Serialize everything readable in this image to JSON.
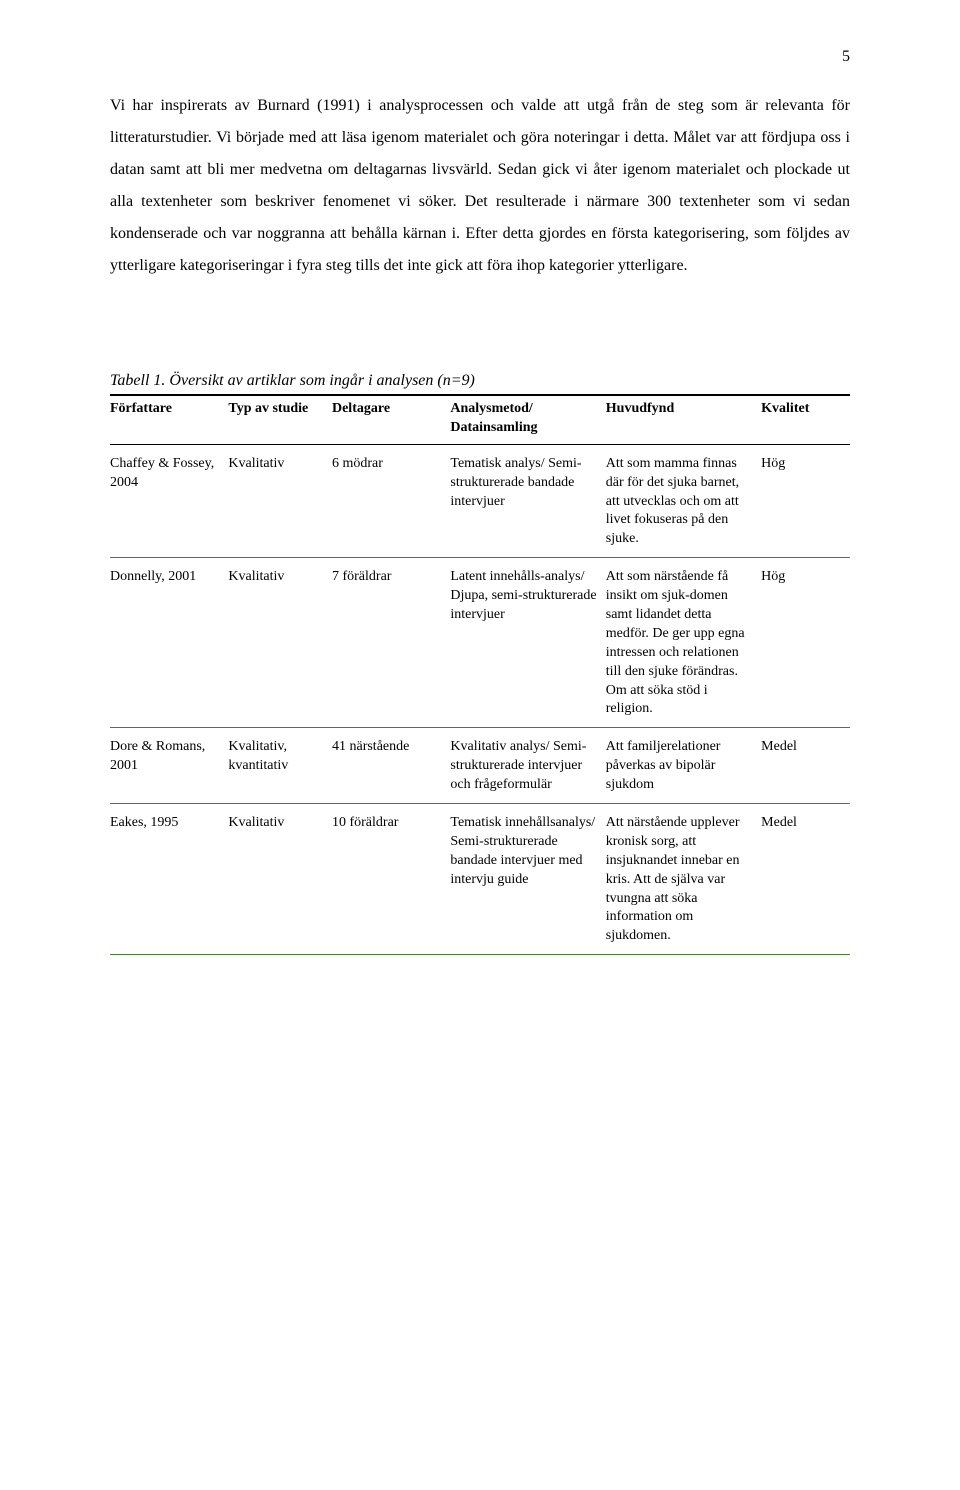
{
  "page_number": "5",
  "body_text": "Vi har inspirerats av Burnard (1991) i analysprocessen och valde att utgå från de steg som är relevanta för litteraturstudier. Vi började med att läsa igenom materialet och göra noteringar i detta. Målet var att fördjupa oss i datan samt att bli mer medvetna om deltagarnas livsvärld. Sedan gick vi åter igenom materialet och plockade ut alla textenheter som beskriver fenomenet vi söker. Det resulterade i närmare 300 textenheter som vi sedan kondenserade och var noggranna att behålla kärnan i. Efter detta gjordes en första kategorisering, som följdes av ytterligare kategoriseringar i fyra steg tills det inte gick att föra ihop kategorier ytterligare.",
  "table_caption": "Tabell 1. Översikt av artiklar som ingår i analysen (n=9)",
  "columns": {
    "author": "Författare",
    "study_type": "Typ av studie",
    "participants": "Deltagare",
    "method": "Analysmetod/ Datainsamling",
    "finding": "Huvudfynd",
    "quality": "Kvalitet"
  },
  "rows": [
    {
      "author": "Chaffey & Fossey, 2004",
      "study_type": "Kvalitativ",
      "participants": "6 mödrar",
      "method": "Tematisk analys/ Semi-strukturerade bandade intervjuer",
      "finding": "Att som mamma finnas där för det sjuka barnet, att utvecklas och om att livet fokuseras på den sjuke.",
      "quality": "Hög"
    },
    {
      "author": "Donnelly, 2001",
      "study_type": "Kvalitativ",
      "participants": "7 föräldrar",
      "method": "Latent innehålls-analys/ Djupa, semi-strukturerade intervjuer",
      "finding": "Att som närstående få insikt om sjuk-domen samt lidandet detta medför. De ger upp egna intressen och relationen till den sjuke förändras. Om att söka stöd i religion.",
      "quality": "Hög"
    },
    {
      "author": "Dore & Romans, 2001",
      "study_type": "Kvalitativ, kvantitativ",
      "participants": "41 närstående",
      "method": "Kvalitativ analys/ Semi-strukturerade intervjuer och frågeformulär",
      "finding": "Att familjerelationer påverkas av bipolär sjukdom",
      "quality": "Medel"
    },
    {
      "author": "Eakes, 1995",
      "study_type": "Kvalitativ",
      "participants": "10 föräldrar",
      "method": "Tematisk innehållsanalys/ Semi-strukturerade bandade intervjuer med intervju guide",
      "finding": "Att närstående upplever kronisk sorg, att insjuknandet innebar en kris. Att de själva var tvungna att söka information om sjukdomen.",
      "quality": "Medel"
    }
  ]
}
